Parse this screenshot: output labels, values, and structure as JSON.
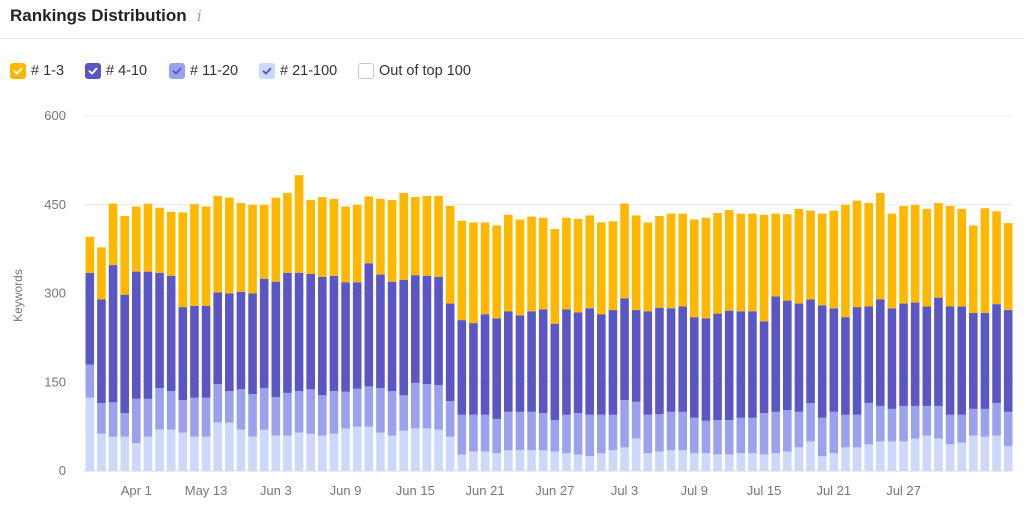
{
  "header": {
    "title": "Rankings Distribution",
    "info_icon": "info-icon"
  },
  "legend": [
    {
      "label": "# 1-3",
      "color": "#ffb700",
      "checked": true
    },
    {
      "label": "# 4-10",
      "color": "#5a56c4",
      "checked": true
    },
    {
      "label": "# 11-20",
      "color": "#9aa2ee",
      "checked": true
    },
    {
      "label": "# 21-100",
      "color": "#cdd9fb",
      "checked": true
    },
    {
      "label": "Out of top 100",
      "color": "#ffffff",
      "checked": false
    }
  ],
  "chart_data": {
    "type": "bar",
    "stacked": true,
    "title": "Rankings Distribution",
    "ylabel": "Keywords",
    "ylim": [
      0,
      600
    ],
    "yticks": [
      0,
      150,
      300,
      450,
      600
    ],
    "xtick_labels": [
      "Apr 1",
      "May 13",
      "Jun 3",
      "Jun 9",
      "Jun 15",
      "Jun 21",
      "Jun 27",
      "Jul 3",
      "Jul 9",
      "Jul 15",
      "Jul 21",
      "Jul 27"
    ],
    "xtick_bar_index": [
      4,
      10,
      16,
      22,
      28,
      34,
      40,
      46,
      52,
      58,
      64,
      70
    ],
    "grid": true,
    "legend_position": "top-left",
    "series": [
      {
        "name": "# 21-100",
        "color": "#cdd9fb",
        "values": [
          124,
          63,
          58,
          58,
          47,
          58,
          70,
          70,
          65,
          58,
          58,
          82,
          82,
          70,
          58,
          70,
          60,
          60,
          65,
          63,
          60,
          63,
          72,
          75,
          75,
          65,
          60,
          68,
          72,
          72,
          70,
          58,
          28,
          33,
          33,
          30,
          35,
          35,
          35,
          35,
          33,
          30,
          28,
          25,
          30,
          35,
          40,
          55,
          30,
          33,
          35,
          35,
          30,
          30,
          28,
          28,
          30,
          30,
          28,
          30,
          33,
          40,
          50,
          25,
          30,
          40,
          40,
          45,
          50,
          50,
          50,
          55,
          60,
          55,
          45,
          48,
          60,
          58,
          60,
          42
        ]
      },
      {
        "name": "# 11-20",
        "color": "#9aa2ee",
        "values": [
          56,
          52,
          58,
          40,
          75,
          64,
          70,
          65,
          55,
          66,
          66,
          65,
          53,
          68,
          72,
          70,
          65,
          72,
          70,
          75,
          68,
          72,
          62,
          64,
          68,
          75,
          75,
          60,
          77,
          75,
          75,
          60,
          67,
          62,
          62,
          58,
          65,
          65,
          65,
          63,
          53,
          65,
          70,
          70,
          65,
          60,
          80,
          62,
          65,
          63,
          65,
          65,
          60,
          55,
          58,
          58,
          60,
          60,
          70,
          70,
          70,
          60,
          65,
          65,
          70,
          55,
          55,
          70,
          60,
          55,
          60,
          55,
          50,
          55,
          50,
          47,
          45,
          47,
          55,
          58
        ]
      },
      {
        "name": "# 4-10",
        "color": "#5a56c4",
        "values": [
          155,
          175,
          232,
          200,
          215,
          215,
          195,
          195,
          157,
          155,
          155,
          155,
          165,
          165,
          170,
          185,
          195,
          203,
          200,
          195,
          200,
          195,
          185,
          180,
          208,
          192,
          185,
          195,
          182,
          183,
          183,
          165,
          160,
          155,
          170,
          170,
          170,
          163,
          170,
          175,
          163,
          178,
          170,
          180,
          170,
          177,
          172,
          155,
          175,
          180,
          175,
          178,
          170,
          173,
          180,
          185,
          180,
          180,
          155,
          195,
          185,
          183,
          175,
          190,
          175,
          165,
          182,
          163,
          180,
          170,
          173,
          175,
          168,
          183,
          183,
          183,
          162,
          162,
          167,
          172
        ]
      },
      {
        "name": "# 1-3",
        "color": "#ffb700",
        "values": [
          61,
          88,
          104,
          133,
          110,
          115,
          110,
          108,
          160,
          172,
          168,
          163,
          162,
          150,
          150,
          125,
          142,
          135,
          165,
          125,
          135,
          130,
          128,
          131,
          113,
          128,
          138,
          147,
          132,
          135,
          137,
          165,
          168,
          170,
          155,
          157,
          163,
          162,
          160,
          155,
          160,
          155,
          158,
          157,
          155,
          150,
          160,
          160,
          150,
          155,
          160,
          157,
          165,
          170,
          170,
          170,
          165,
          165,
          180,
          140,
          146,
          160,
          150,
          155,
          165,
          190,
          180,
          175,
          180,
          160,
          165,
          165,
          165,
          160,
          170,
          165,
          148,
          177,
          157,
          147
        ]
      }
    ]
  }
}
